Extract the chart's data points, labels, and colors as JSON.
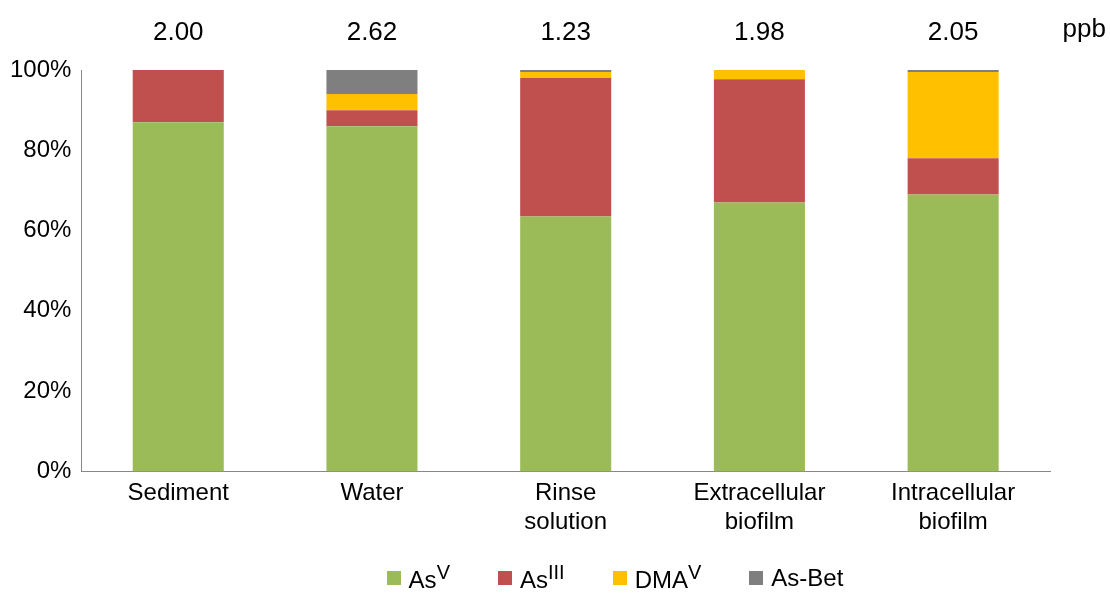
{
  "chart_data": {
    "type": "bar",
    "stacked": true,
    "categories": [
      "Sediment",
      "Water",
      "Rinse solution",
      "Extracellular biofilm",
      "Intracellular biofilm"
    ],
    "series": [
      {
        "name": "As$^{V}$",
        "color": "#9bbb59",
        "values": [
          87,
          86,
          63.5,
          67,
          69
        ]
      },
      {
        "name": "As$^{III}$",
        "color": "#c0504d",
        "values": [
          13,
          4,
          34.5,
          30.7,
          9
        ]
      },
      {
        "name": "DMA$^{V}$",
        "color": "#ffc000",
        "values": [
          0,
          4,
          1.5,
          2.3,
          21.5
        ]
      },
      {
        "name": "As-Bet",
        "color": "#7f7f7f",
        "values": [
          0,
          6,
          0.5,
          0,
          0.5
        ]
      }
    ],
    "ylim": [
      0,
      100
    ],
    "yticks": [
      {
        "value": 0,
        "label": "0%"
      },
      {
        "value": 20,
        "label": "20%"
      },
      {
        "value": 40,
        "label": "40%"
      },
      {
        "value": 60,
        "label": "60%"
      },
      {
        "value": 80,
        "label": "80%"
      },
      {
        "value": 100,
        "label": "100%"
      }
    ],
    "grid": false,
    "legend": "bottom",
    "annotations": [
      "2.00",
      "2.62",
      "1.23",
      "1.98",
      "2.05",
      "ppb"
    ]
  }
}
